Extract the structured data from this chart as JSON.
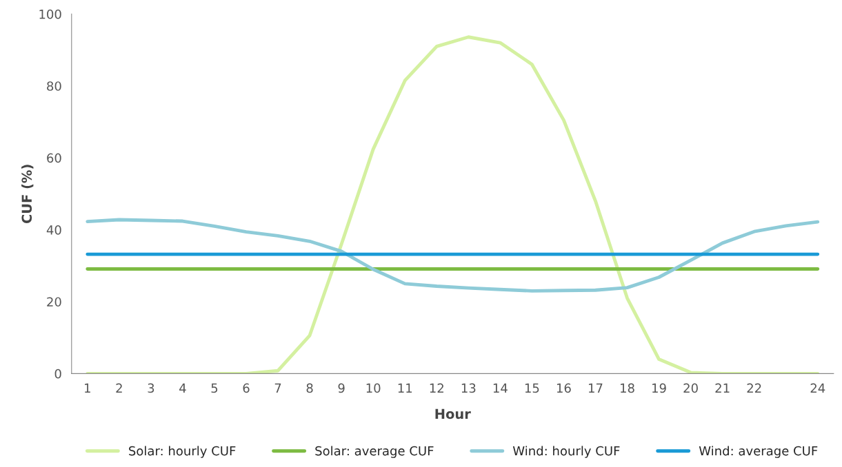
{
  "chart_data": {
    "type": "line",
    "xlabel": "Hour",
    "ylabel": "CUF (%)",
    "categories": [
      "1",
      "2",
      "3",
      "4",
      "5",
      "6",
      "7",
      "8",
      "9",
      "10",
      "11",
      "12",
      "13",
      "14",
      "15",
      "16",
      "17",
      "18",
      "19",
      "20",
      "21",
      "22",
      null,
      "24"
    ],
    "ylim": [
      0,
      100
    ],
    "yticks": [
      0,
      20,
      40,
      60,
      80,
      100
    ],
    "grid": false,
    "legend": "bottom",
    "line_style": "solid",
    "marker": "none",
    "series": [
      {
        "name": "Solar: hourly CUF",
        "color": "#d4f0a0",
        "values": [
          0,
          0,
          0,
          0,
          0,
          0,
          0.8,
          10.6,
          36,
          62.4,
          81.5,
          91,
          93.6,
          92,
          86,
          70.5,
          48,
          21,
          4,
          0.3,
          0,
          0,
          0,
          0
        ]
      },
      {
        "name": "Solar: average CUF",
        "color": "#7dbb42",
        "values": [
          29.1,
          29.1,
          29.1,
          29.1,
          29.1,
          29.1,
          29.1,
          29.1,
          29.1,
          29.1,
          29.1,
          29.1,
          29.1,
          29.1,
          29.1,
          29.1,
          29.1,
          29.1,
          29.1,
          29.1,
          29.1,
          29.1,
          29.1,
          29.1
        ]
      },
      {
        "name": "Wind: hourly CUF",
        "color": "#8ecbd8",
        "values": [
          42.3,
          42.8,
          42.6,
          42.4,
          41,
          39.4,
          38.3,
          36.8,
          34,
          29,
          25,
          24.3,
          23.8,
          23.4,
          23,
          23.1,
          23.2,
          23.9,
          26.8,
          31.5,
          36.3,
          39.5,
          41.1,
          42.2
        ]
      },
      {
        "name": "Wind: average CUF",
        "color": "#1a9ad6",
        "values": [
          33.2,
          33.2,
          33.2,
          33.2,
          33.2,
          33.2,
          33.2,
          33.2,
          33.2,
          33.2,
          33.2,
          33.2,
          33.2,
          33.2,
          33.2,
          33.2,
          33.2,
          33.2,
          33.2,
          33.2,
          33.2,
          33.2,
          33.2,
          33.2
        ]
      }
    ]
  }
}
